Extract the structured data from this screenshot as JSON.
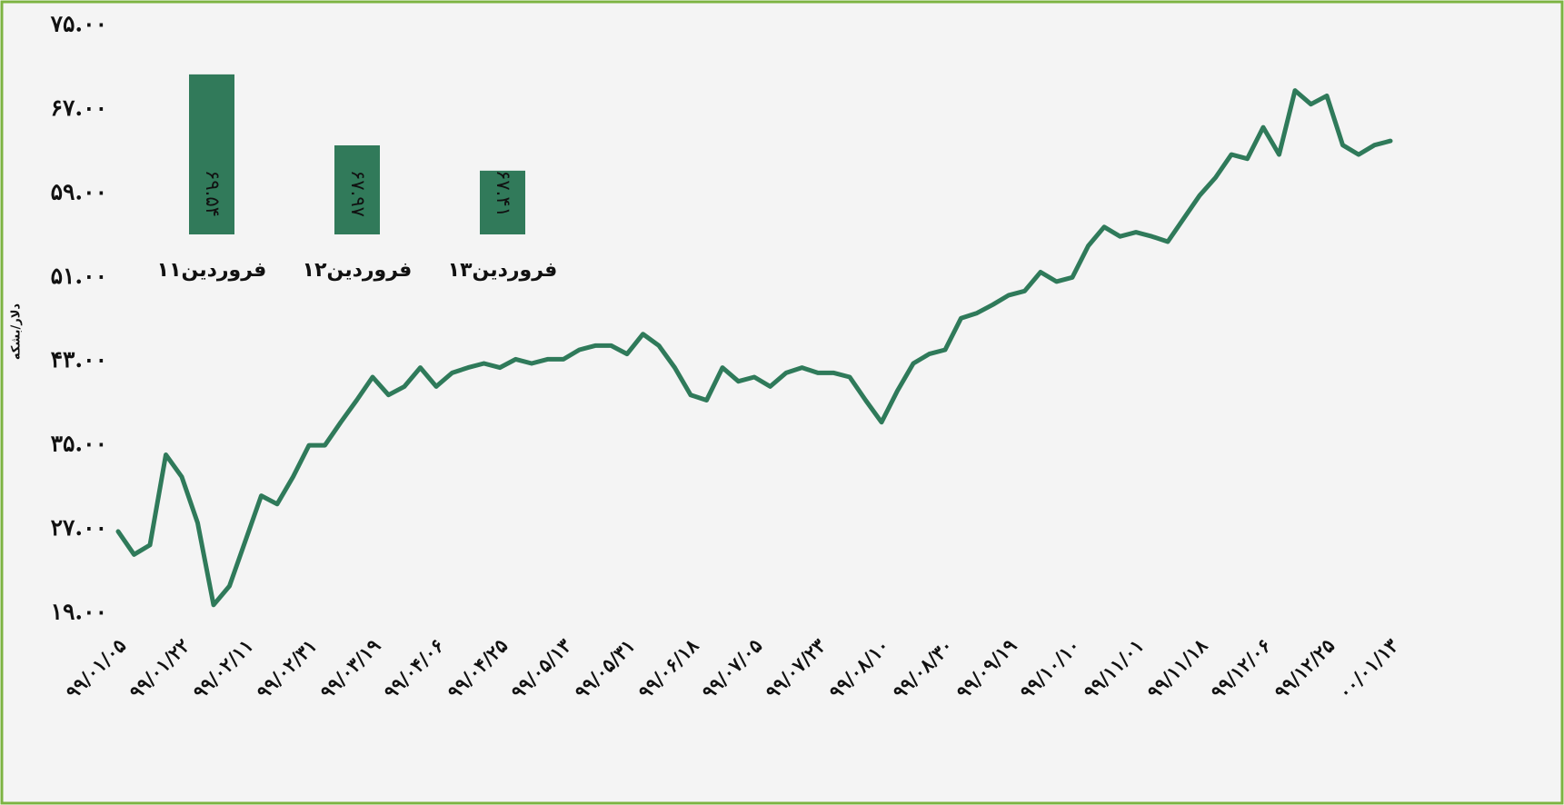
{
  "chart_data": [
    {
      "type": "line",
      "y_label": "دلار/بشکه",
      "categories": [
        "۹۹/۰۱/۰۵",
        null,
        null,
        null,
        "۹۹/۰۱/۲۲",
        null,
        null,
        null,
        "۹۹/۰۲/۱۱",
        null,
        null,
        null,
        "۹۹/۰۲/۳۱",
        null,
        null,
        null,
        "۹۹/۰۳/۱۹",
        null,
        null,
        null,
        "۹۹/۰۴/۰۶",
        null,
        null,
        null,
        "۹۹/۰۴/۲۵",
        null,
        null,
        null,
        "۹۹/۰۵/۱۳",
        null,
        null,
        null,
        "۹۹/۰۵/۳۱",
        null,
        null,
        null,
        "۹۹/۰۶/۱۸",
        null,
        null,
        null,
        "۹۹/۰۷/۰۵",
        null,
        null,
        null,
        "۹۹/۰۷/۲۳",
        null,
        null,
        null,
        "۹۹/۰۸/۱۰",
        null,
        null,
        null,
        "۹۹/۰۸/۳۰",
        null,
        null,
        null,
        "۹۹/۰۹/۱۹",
        null,
        null,
        null,
        "۹۹/۱۰/۱۰",
        null,
        null,
        null,
        "۹۹/۱۱/۰۱",
        null,
        null,
        null,
        "۹۹/۱۱/۱۸",
        null,
        null,
        null,
        "۹۹/۱۲/۰۶",
        null,
        null,
        null,
        "۹۹/۱۲/۲۵",
        null,
        null,
        null,
        "۰۰/۰۱/۱۳"
      ],
      "series": [
        {
          "color": "#2f7a5a",
          "values": [
            26.8,
            24.6,
            25.5,
            34.1,
            32,
            27.6,
            19.8,
            21.6,
            25.9,
            30.2,
            29.4,
            32,
            35,
            35,
            37.2,
            39.3,
            41.5,
            39.8,
            40.6,
            42.4,
            40.6,
            41.9,
            42.4,
            42.8,
            42.4,
            43.2,
            42.8,
            43.2,
            43.2,
            44.1,
            44.5,
            44.5,
            43.7,
            45.6,
            44.5,
            42.4,
            39.8,
            39.3,
            42.4,
            41.1,
            41.5,
            40.6,
            41.9,
            42.4,
            41.9,
            41.9,
            41.5,
            39.3,
            37.2,
            40.2,
            42.8,
            43.7,
            44.1,
            47.1,
            47.6,
            48.4,
            49.3,
            49.7,
            51.5,
            50.6,
            51,
            54,
            55.8,
            54.9,
            55.3,
            54.9,
            54.4,
            56.6,
            58.8,
            60.5,
            62.7,
            62.3,
            65.3,
            62.7,
            68.8,
            67.5,
            68.3,
            63.6,
            62.7,
            63.6,
            64
          ]
        }
      ],
      "ylim": [
        19,
        75
      ],
      "yticks": [
        {
          "value": 75,
          "label": "۷۵.۰۰"
        },
        {
          "value": 67,
          "label": "۶۷.۰۰"
        },
        {
          "value": 59,
          "label": "۵۹.۰۰"
        },
        {
          "value": 51,
          "label": "۵۱.۰۰"
        },
        {
          "value": 43,
          "label": "۴۳.۰۰"
        },
        {
          "value": 35,
          "label": "۳۵.۰۰"
        },
        {
          "value": 27,
          "label": "۲۷.۰۰"
        },
        {
          "value": 19,
          "label": "۱۹.۰۰"
        }
      ]
    },
    {
      "type": "bar",
      "categories": [
        "۱۱فروردین",
        "۱۲فروردین",
        "۱۳فروردین"
      ],
      "values": [
        69.54,
        67.97,
        67.41
      ],
      "value_labels": [
        "۶۹.۵۴",
        "۶۷.۹۷",
        "۶۷.۴۱"
      ],
      "color": "#317a5a",
      "ylim": [
        66,
        70
      ]
    }
  ]
}
